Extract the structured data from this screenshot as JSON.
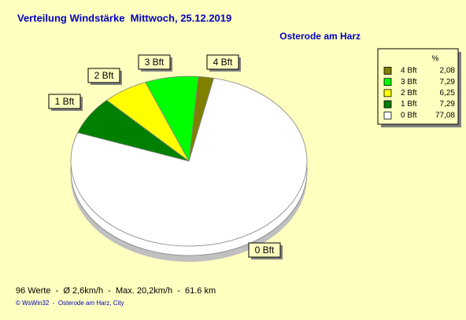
{
  "chart_data": {
    "type": "pie",
    "title": "Verteilung Windstärke  Mittwoch, 25.12.2019",
    "subtitle": "Osterode am Harz",
    "categories": [
      "4 Bft",
      "3 Bft",
      "2 Bft",
      "1 Bft",
      "0 Bft"
    ],
    "values": [
      2.08,
      7.29,
      6.25,
      7.29,
      77.08
    ],
    "value_labels": [
      "2,08",
      "7,29",
      "6,25",
      "7,29",
      "77,08"
    ],
    "colors": [
      "#808000",
      "#00ff00",
      "#ffff00",
      "#008000",
      "#ffffff"
    ],
    "legend_title": "%",
    "legend": "top-right"
  },
  "footer": {
    "stats": "96 Werte  -  Ø 2,6km/h  -  Max. 20,2km/h  -  61.6 km",
    "copyright": "© WsWin32  -  Osterode am Harz, City"
  }
}
